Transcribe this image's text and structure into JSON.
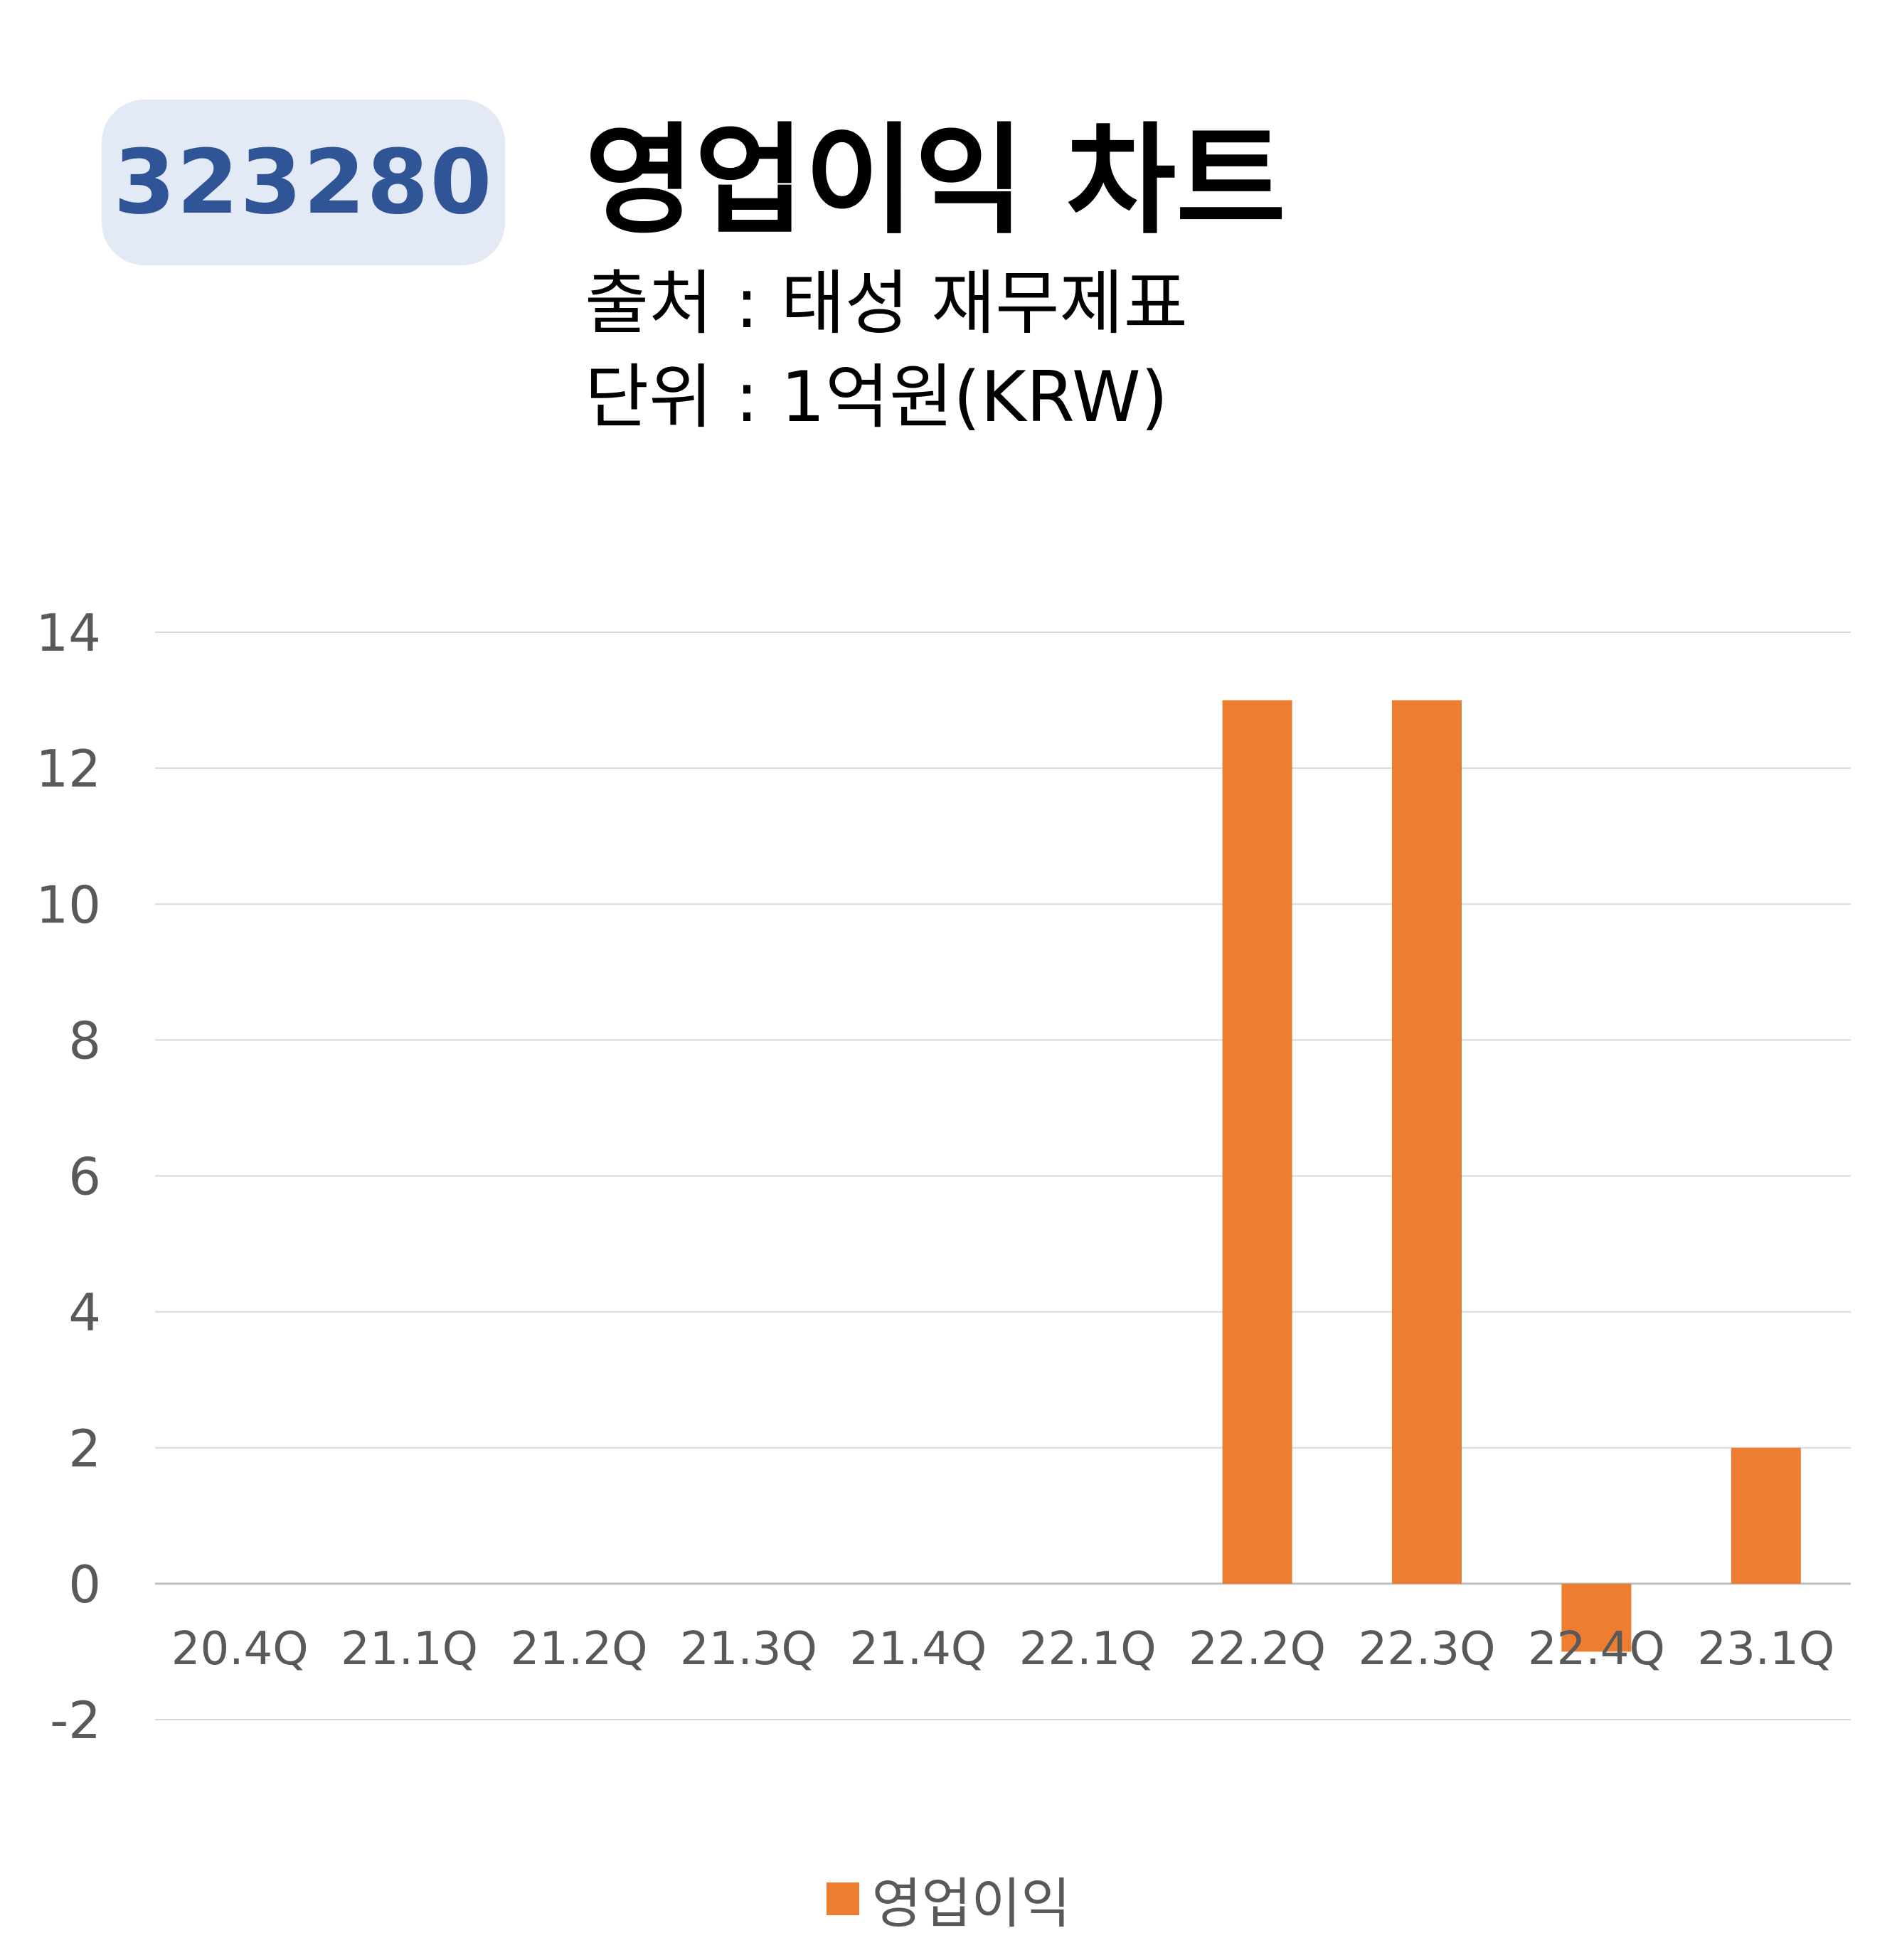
{
  "badge": {
    "code": "323280"
  },
  "header": {
    "title": "영업이익 차트",
    "source": "출처 : 태성 재무제표",
    "unit": "단위 : 1억원(KRW)"
  },
  "colors": {
    "bar": "#ed7d31",
    "badge_bg": "#e3e9f5",
    "badge_text": "#2f5597",
    "grid": "#d9d9d9",
    "axis_text": "#595959"
  },
  "chart_data": {
    "type": "bar",
    "categories": [
      "20.4Q",
      "21.1Q",
      "21.2Q",
      "21.3Q",
      "21.4Q",
      "22.1Q",
      "22.2Q",
      "22.3Q",
      "22.4Q",
      "23.1Q"
    ],
    "series": [
      {
        "name": "영업이익",
        "values": [
          0,
          0,
          0,
          0,
          0,
          0,
          13,
          13,
          -1,
          2
        ]
      }
    ],
    "yticks": [
      -2,
      0,
      2,
      4,
      6,
      8,
      10,
      12,
      14
    ],
    "ylim": [
      -2,
      14
    ],
    "grid": true,
    "legend_position": "bottom"
  }
}
